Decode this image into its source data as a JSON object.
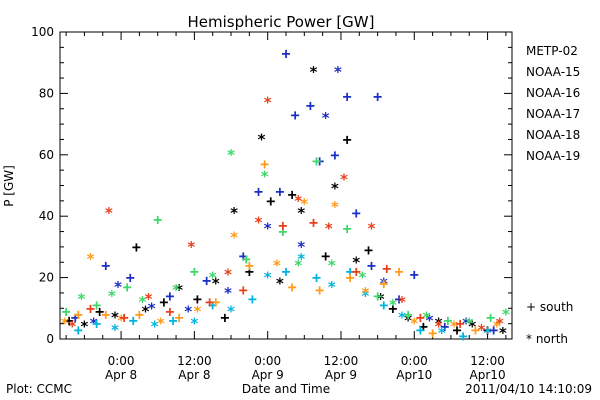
{
  "chart_data": {
    "type": "scatter",
    "title": "Hemispheric Power [GW]",
    "xlabel": "Date and Time",
    "ylabel": "P [GW]",
    "ylim": [
      0,
      100
    ],
    "yticks": [
      0,
      20,
      40,
      60,
      80,
      100
    ],
    "xticks": [
      {
        "t": 12,
        "line1": "0:00",
        "line2": "Apr 8"
      },
      {
        "t": 24,
        "line1": "12:00",
        "line2": "Apr 8"
      },
      {
        "t": 36,
        "line1": "0:00",
        "line2": "Apr 9"
      },
      {
        "t": 48,
        "line1": "12:00",
        "line2": "Apr 9"
      },
      {
        "t": 60,
        "line1": "0:00",
        "line2": "Apr10"
      },
      {
        "t": 72,
        "line1": "12:00",
        "line2": "Apr10"
      }
    ],
    "xlim": [
      2,
      76
    ],
    "grid": false,
    "legend_placement": "right",
    "hemisphere_legend": [
      {
        "symbol": "+",
        "label": "south"
      },
      {
        "symbol": "*",
        "label": "north"
      }
    ],
    "series": [
      {
        "name": "METP-02",
        "color": "#000000",
        "points": [
          {
            "t": 3.5,
            "v": 6,
            "h": "+"
          },
          {
            "t": 6.0,
            "v": 4,
            "h": "*"
          },
          {
            "t": 8.5,
            "v": 9,
            "h": "+"
          },
          {
            "t": 11.0,
            "v": 7,
            "h": "*"
          },
          {
            "t": 14.5,
            "v": 30,
            "h": "+"
          },
          {
            "t": 16.0,
            "v": 9,
            "h": "*"
          },
          {
            "t": 19.0,
            "v": 12,
            "h": "+"
          },
          {
            "t": 21.5,
            "v": 16,
            "h": "*"
          },
          {
            "t": 24.5,
            "v": 13,
            "h": "+"
          },
          {
            "t": 27.5,
            "v": 18,
            "h": "*"
          },
          {
            "t": 29.0,
            "v": 7,
            "h": "+"
          },
          {
            "t": 30.5,
            "v": 41,
            "h": "*"
          },
          {
            "t": 33.0,
            "v": 22,
            "h": "+"
          },
          {
            "t": 35.0,
            "v": 65,
            "h": "*"
          },
          {
            "t": 36.5,
            "v": 45,
            "h": "+"
          },
          {
            "t": 38.0,
            "v": 18,
            "h": "*"
          },
          {
            "t": 40.0,
            "v": 47,
            "h": "+"
          },
          {
            "t": 41.5,
            "v": 41,
            "h": "*"
          },
          {
            "t": 43.5,
            "v": 87,
            "h": "*"
          },
          {
            "t": 45.5,
            "v": 27,
            "h": "+"
          },
          {
            "t": 47.0,
            "v": 49,
            "h": "*"
          },
          {
            "t": 49.0,
            "v": 65,
            "h": "+"
          },
          {
            "t": 50.5,
            "v": 25,
            "h": "*"
          },
          {
            "t": 52.5,
            "v": 29,
            "h": "+"
          },
          {
            "t": 54.5,
            "v": 13,
            "h": "*"
          },
          {
            "t": 56.5,
            "v": 10,
            "h": "+"
          },
          {
            "t": 59.0,
            "v": 6,
            "h": "*"
          },
          {
            "t": 61.5,
            "v": 4,
            "h": "+"
          },
          {
            "t": 64.0,
            "v": 5,
            "h": "*"
          },
          {
            "t": 67.0,
            "v": 3,
            "h": "+"
          },
          {
            "t": 69.5,
            "v": 4,
            "h": "*"
          },
          {
            "t": 72.0,
            "v": 3,
            "h": "+"
          },
          {
            "t": 74.5,
            "v": 2,
            "h": "*"
          }
        ]
      },
      {
        "name": "NOAA-15",
        "color": "#1a2fc4",
        "points": [
          {
            "t": 4.5,
            "v": 7,
            "h": "+"
          },
          {
            "t": 7.5,
            "v": 5,
            "h": "*"
          },
          {
            "t": 9.5,
            "v": 24,
            "h": "+"
          },
          {
            "t": 11.5,
            "v": 17,
            "h": "*"
          },
          {
            "t": 13.5,
            "v": 20,
            "h": "+"
          },
          {
            "t": 17.0,
            "v": 10,
            "h": "*"
          },
          {
            "t": 20.0,
            "v": 14,
            "h": "+"
          },
          {
            "t": 23.0,
            "v": 9,
            "h": "*"
          },
          {
            "t": 26.0,
            "v": 19,
            "h": "+"
          },
          {
            "t": 29.5,
            "v": 15,
            "h": "*"
          },
          {
            "t": 32.0,
            "v": 27,
            "h": "+"
          },
          {
            "t": 34.5,
            "v": 48,
            "h": "+"
          },
          {
            "t": 36.0,
            "v": 36,
            "h": "*"
          },
          {
            "t": 38.0,
            "v": 48,
            "h": "+"
          },
          {
            "t": 39.0,
            "v": 93,
            "h": "+"
          },
          {
            "t": 40.5,
            "v": 73,
            "h": "+"
          },
          {
            "t": 41.5,
            "v": 30,
            "h": "*"
          },
          {
            "t": 43.0,
            "v": 76,
            "h": "+"
          },
          {
            "t": 44.5,
            "v": 58,
            "h": "+"
          },
          {
            "t": 45.5,
            "v": 72,
            "h": "*"
          },
          {
            "t": 47.0,
            "v": 60,
            "h": "+"
          },
          {
            "t": 47.5,
            "v": 87,
            "h": "*"
          },
          {
            "t": 49.0,
            "v": 79,
            "h": "+"
          },
          {
            "t": 50.5,
            "v": 41,
            "h": "+"
          },
          {
            "t": 53.0,
            "v": 24,
            "h": "+"
          },
          {
            "t": 54.0,
            "v": 79,
            "h": "+"
          },
          {
            "t": 55.0,
            "v": 18,
            "h": "*"
          },
          {
            "t": 57.5,
            "v": 13,
            "h": "+"
          },
          {
            "t": 60.0,
            "v": 21,
            "h": "+"
          },
          {
            "t": 62.5,
            "v": 6,
            "h": "*"
          },
          {
            "t": 65.0,
            "v": 4,
            "h": "+"
          },
          {
            "t": 68.5,
            "v": 5,
            "h": "*"
          },
          {
            "t": 73.0,
            "v": 3,
            "h": "+"
          }
        ]
      },
      {
        "name": "NOAA-16",
        "color": "#00b4e0",
        "points": [
          {
            "t": 5.0,
            "v": 3,
            "h": "+"
          },
          {
            "t": 8.0,
            "v": 5,
            "h": "+"
          },
          {
            "t": 11.0,
            "v": 3,
            "h": "*"
          },
          {
            "t": 14.0,
            "v": 6,
            "h": "+"
          },
          {
            "t": 17.5,
            "v": 4,
            "h": "*"
          },
          {
            "t": 20.5,
            "v": 6,
            "h": "+"
          },
          {
            "t": 24.0,
            "v": 5,
            "h": "*"
          },
          {
            "t": 27.0,
            "v": 11,
            "h": "+"
          },
          {
            "t": 30.0,
            "v": 9,
            "h": "*"
          },
          {
            "t": 33.5,
            "v": 13,
            "h": "+"
          },
          {
            "t": 36.0,
            "v": 20,
            "h": "*"
          },
          {
            "t": 39.0,
            "v": 22,
            "h": "+"
          },
          {
            "t": 41.5,
            "v": 26,
            "h": "*"
          },
          {
            "t": 44.0,
            "v": 20,
            "h": "+"
          },
          {
            "t": 46.5,
            "v": 17,
            "h": "*"
          },
          {
            "t": 49.5,
            "v": 22,
            "h": "+"
          },
          {
            "t": 52.0,
            "v": 14,
            "h": "*"
          },
          {
            "t": 55.0,
            "v": 11,
            "h": "+"
          },
          {
            "t": 58.0,
            "v": 7,
            "h": "*"
          },
          {
            "t": 61.0,
            "v": 3,
            "h": "+"
          },
          {
            "t": 64.5,
            "v": 2,
            "h": "*"
          },
          {
            "t": 68.0,
            "v": 1,
            "h": "+"
          },
          {
            "t": 72.0,
            "v": 2,
            "h": "*"
          }
        ]
      },
      {
        "name": "NOAA-17",
        "color": "#3ed86a",
        "points": [
          {
            "t": 3.0,
            "v": 9,
            "h": "+"
          },
          {
            "t": 5.5,
            "v": 13,
            "h": "*"
          },
          {
            "t": 8.0,
            "v": 11,
            "h": "+"
          },
          {
            "t": 10.5,
            "v": 14,
            "h": "*"
          },
          {
            "t": 13.0,
            "v": 17,
            "h": "+"
          },
          {
            "t": 15.5,
            "v": 12,
            "h": "*"
          },
          {
            "t": 18.0,
            "v": 39,
            "h": "+"
          },
          {
            "t": 21.0,
            "v": 16,
            "h": "*"
          },
          {
            "t": 24.0,
            "v": 22,
            "h": "+"
          },
          {
            "t": 27.0,
            "v": 20,
            "h": "*"
          },
          {
            "t": 30.0,
            "v": 60,
            "h": "*"
          },
          {
            "t": 32.5,
            "v": 26,
            "h": "+"
          },
          {
            "t": 35.5,
            "v": 53,
            "h": "*"
          },
          {
            "t": 38.5,
            "v": 35,
            "h": "+"
          },
          {
            "t": 41.0,
            "v": 24,
            "h": "*"
          },
          {
            "t": 44.0,
            "v": 58,
            "h": "+"
          },
          {
            "t": 46.5,
            "v": 24,
            "h": "*"
          },
          {
            "t": 49.0,
            "v": 36,
            "h": "+"
          },
          {
            "t": 51.5,
            "v": 20,
            "h": "*"
          },
          {
            "t": 54.0,
            "v": 14,
            "h": "+"
          },
          {
            "t": 56.5,
            "v": 11,
            "h": "*"
          },
          {
            "t": 59.0,
            "v": 8,
            "h": "+"
          },
          {
            "t": 62.0,
            "v": 7,
            "h": "*"
          },
          {
            "t": 65.5,
            "v": 6,
            "h": "+"
          },
          {
            "t": 69.0,
            "v": 5,
            "h": "*"
          },
          {
            "t": 72.5,
            "v": 7,
            "h": "+"
          },
          {
            "t": 75.0,
            "v": 8,
            "h": "*"
          }
        ]
      },
      {
        "name": "NOAA-18",
        "color": "#ff9a1a",
        "points": [
          {
            "t": 2.8,
            "v": 5,
            "h": "*"
          },
          {
            "t": 5.0,
            "v": 8,
            "h": "+"
          },
          {
            "t": 7.0,
            "v": 26,
            "h": "*"
          },
          {
            "t": 9.5,
            "v": 8,
            "h": "+"
          },
          {
            "t": 12.0,
            "v": 6,
            "h": "*"
          },
          {
            "t": 15.0,
            "v": 8,
            "h": "+"
          },
          {
            "t": 18.5,
            "v": 5,
            "h": "*"
          },
          {
            "t": 21.5,
            "v": 7,
            "h": "+"
          },
          {
            "t": 24.5,
            "v": 9,
            "h": "*"
          },
          {
            "t": 27.5,
            "v": 12,
            "h": "+"
          },
          {
            "t": 30.5,
            "v": 33,
            "h": "*"
          },
          {
            "t": 33.0,
            "v": 24,
            "h": "+"
          },
          {
            "t": 35.5,
            "v": 57,
            "h": "+"
          },
          {
            "t": 37.5,
            "v": 24,
            "h": "*"
          },
          {
            "t": 40.0,
            "v": 17,
            "h": "+"
          },
          {
            "t": 42.0,
            "v": 44,
            "h": "*"
          },
          {
            "t": 44.5,
            "v": 16,
            "h": "+"
          },
          {
            "t": 47.0,
            "v": 43,
            "h": "*"
          },
          {
            "t": 49.5,
            "v": 20,
            "h": "+"
          },
          {
            "t": 52.0,
            "v": 15,
            "h": "*"
          },
          {
            "t": 55.0,
            "v": 18,
            "h": "+"
          },
          {
            "t": 57.5,
            "v": 22,
            "h": "+"
          },
          {
            "t": 60.0,
            "v": 5,
            "h": "*"
          },
          {
            "t": 63.0,
            "v": 2,
            "h": "+"
          },
          {
            "t": 66.5,
            "v": 4,
            "h": "*"
          },
          {
            "t": 70.0,
            "v": 3,
            "h": "+"
          },
          {
            "t": 73.5,
            "v": 4,
            "h": "*"
          }
        ]
      },
      {
        "name": "NOAA-19",
        "color": "#e8401c",
        "points": [
          {
            "t": 4.0,
            "v": 4,
            "h": "*"
          },
          {
            "t": 7.0,
            "v": 10,
            "h": "+"
          },
          {
            "t": 10.0,
            "v": 41,
            "h": "*"
          },
          {
            "t": 12.5,
            "v": 7,
            "h": "+"
          },
          {
            "t": 16.5,
            "v": 13,
            "h": "*"
          },
          {
            "t": 20.0,
            "v": 9,
            "h": "+"
          },
          {
            "t": 23.5,
            "v": 30,
            "h": "*"
          },
          {
            "t": 26.5,
            "v": 12,
            "h": "+"
          },
          {
            "t": 29.5,
            "v": 21,
            "h": "*"
          },
          {
            "t": 32.0,
            "v": 16,
            "h": "+"
          },
          {
            "t": 34.5,
            "v": 38,
            "h": "*"
          },
          {
            "t": 36.0,
            "v": 77,
            "h": "*"
          },
          {
            "t": 38.5,
            "v": 37,
            "h": "+"
          },
          {
            "t": 41.0,
            "v": 45,
            "h": "*"
          },
          {
            "t": 43.5,
            "v": 38,
            "h": "+"
          },
          {
            "t": 46.0,
            "v": 36,
            "h": "*"
          },
          {
            "t": 48.5,
            "v": 52,
            "h": "*"
          },
          {
            "t": 50.5,
            "v": 22,
            "h": "+"
          },
          {
            "t": 53.0,
            "v": 36,
            "h": "*"
          },
          {
            "t": 55.5,
            "v": 23,
            "h": "+"
          },
          {
            "t": 58.0,
            "v": 12,
            "h": "*"
          },
          {
            "t": 61.0,
            "v": 7,
            "h": "+"
          },
          {
            "t": 64.0,
            "v": 4,
            "h": "*"
          },
          {
            "t": 67.5,
            "v": 5,
            "h": "+"
          },
          {
            "t": 71.0,
            "v": 3,
            "h": "*"
          },
          {
            "t": 74.0,
            "v": 5,
            "h": "*"
          }
        ]
      }
    ]
  },
  "footer": {
    "left": "Plot: CCMC",
    "right": "2011/04/10 14:10:09"
  }
}
